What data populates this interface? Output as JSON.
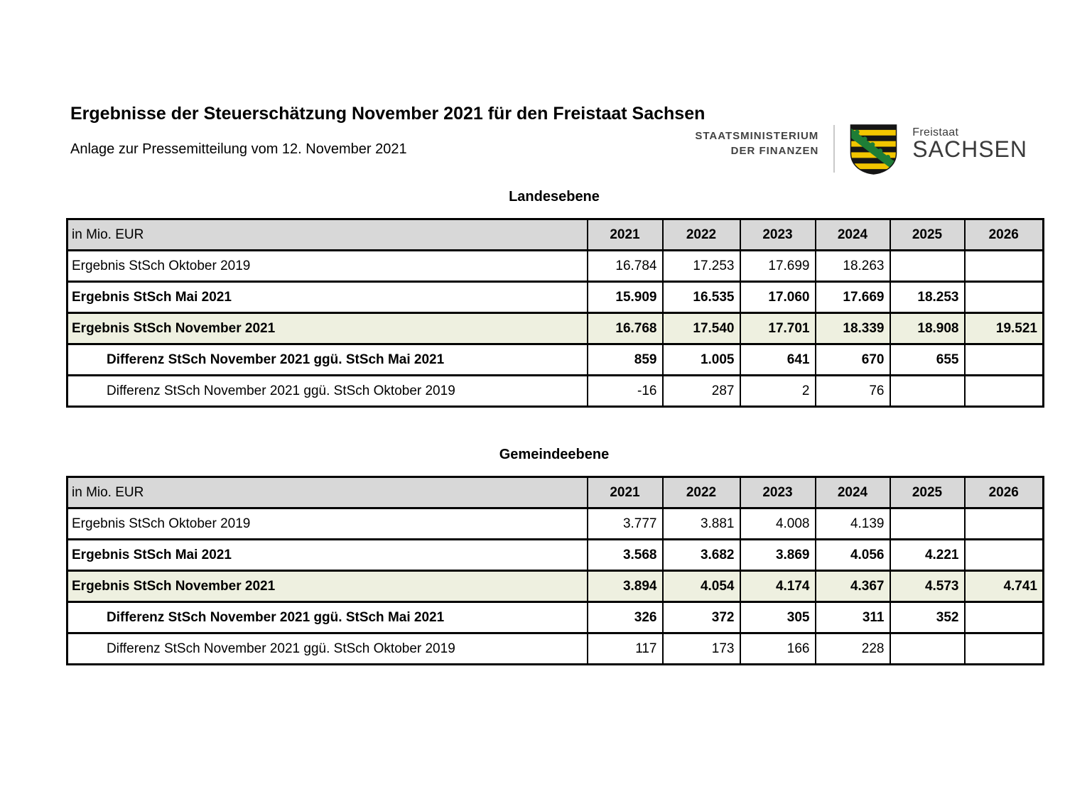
{
  "header": {
    "ministry_line1": "STAATSMINISTERIUM",
    "ministry_line2": "DER FINANZEN",
    "brand_small": "Freistaat",
    "brand_large": "SACHSEN",
    "coat_of_arms_icon": "saxony-coat-of-arms",
    "colors": {
      "shield_gold": "#f2c500",
      "shield_black": "#151515",
      "shield_green": "#1e7d36",
      "brand_text": "#3b3b3b",
      "divider": "#c9c9c9"
    }
  },
  "page": {
    "title": "Ergebnisse der Steuerschätzung November 2021 für den Freistaat Sachsen",
    "subtitle": "Anlage zur Pressemitteilung vom 12. November 2021"
  },
  "colors": {
    "header_row_bg": "#d8d8d8",
    "highlight_row_bg": "#eef0e0",
    "table_border": "#000000"
  },
  "tables": [
    {
      "title": "Landesebene",
      "unit_label": "in Mio. EUR",
      "years": [
        "2021",
        "2022",
        "2023",
        "2024",
        "2025",
        "2026"
      ],
      "rows": [
        {
          "label": "Ergebnis StSch Oktober 2019",
          "style": "regular",
          "values": [
            "16.784",
            "17.253",
            "17.699",
            "18.263",
            "",
            ""
          ]
        },
        {
          "label": "Ergebnis StSch Mai 2021",
          "style": "bold",
          "values": [
            "15.909",
            "16.535",
            "17.060",
            "17.669",
            "18.253",
            ""
          ]
        },
        {
          "label": "Ergebnis StSch November 2021",
          "style": "highlight",
          "values": [
            "16.768",
            "17.540",
            "17.701",
            "18.339",
            "18.908",
            "19.521"
          ]
        },
        {
          "label": "Differenz StSch November 2021 ggü. StSch Mai 2021",
          "style": "diff-bold",
          "values": [
            "859",
            "1.005",
            "641",
            "670",
            "655",
            ""
          ]
        },
        {
          "label": "Differenz StSch November 2021 ggü. StSch Oktober 2019",
          "style": "diff-regular",
          "values": [
            "-16",
            "287",
            "2",
            "76",
            "",
            ""
          ]
        }
      ]
    },
    {
      "title": "Gemeindeebene",
      "unit_label": "in Mio. EUR",
      "years": [
        "2021",
        "2022",
        "2023",
        "2024",
        "2025",
        "2026"
      ],
      "rows": [
        {
          "label": "Ergebnis StSch Oktober 2019",
          "style": "regular",
          "values": [
            "3.777",
            "3.881",
            "4.008",
            "4.139",
            "",
            ""
          ]
        },
        {
          "label": "Ergebnis StSch Mai 2021",
          "style": "bold",
          "values": [
            "3.568",
            "3.682",
            "3.869",
            "4.056",
            "4.221",
            ""
          ]
        },
        {
          "label": "Ergebnis StSch November 2021",
          "style": "highlight",
          "values": [
            "3.894",
            "4.054",
            "4.174",
            "4.367",
            "4.573",
            "4.741"
          ]
        },
        {
          "label": "Differenz StSch November 2021 ggü. StSch Mai 2021",
          "style": "diff-bold",
          "values": [
            "326",
            "372",
            "305",
            "311",
            "352",
            ""
          ]
        },
        {
          "label": "Differenz StSch November 2021 ggü. StSch Oktober 2019",
          "style": "diff-regular",
          "values": [
            "117",
            "173",
            "166",
            "228",
            "",
            ""
          ]
        }
      ]
    }
  ]
}
